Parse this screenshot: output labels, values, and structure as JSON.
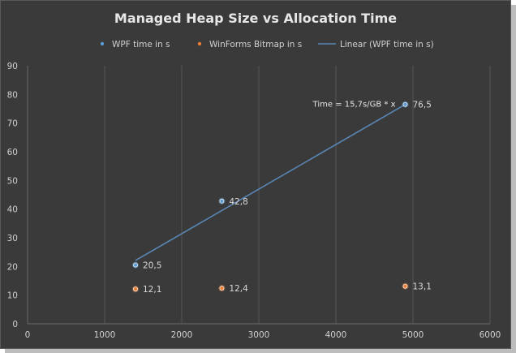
{
  "chart_data": {
    "type": "scatter",
    "title": "Managed Heap Size vs Allocation Time",
    "xlabel": "",
    "ylabel": "",
    "xlim": [
      0,
      6000
    ],
    "ylim": [
      0,
      90
    ],
    "x_ticks": [
      0,
      1000,
      2000,
      3000,
      4000,
      5000,
      6000
    ],
    "y_ticks": [
      0,
      10,
      20,
      30,
      40,
      50,
      60,
      70,
      80,
      90
    ],
    "grid": "vertical-only",
    "legend_position": "top",
    "series": [
      {
        "name": "WPF  time in s",
        "color": "#5b9bd5",
        "points": [
          {
            "x": 1400,
            "y": 20.5,
            "label": "20,5"
          },
          {
            "x": 2520,
            "y": 42.8,
            "label": "42,8"
          },
          {
            "x": 4900,
            "y": 76.5,
            "label": "76,5"
          }
        ]
      },
      {
        "name": "WinForms Bitmap in s",
        "color": "#ed7d31",
        "points": [
          {
            "x": 1400,
            "y": 12.1,
            "label": "12,1"
          },
          {
            "x": 2520,
            "y": 12.4,
            "label": "12,4"
          },
          {
            "x": 4900,
            "y": 13.1,
            "label": "13,1"
          }
        ]
      }
    ],
    "trendline": {
      "name": "Linear (WPF  time in s)",
      "color": "#5a86b5",
      "x": [
        1400,
        4900
      ],
      "y": [
        22.1,
        76.5
      ],
      "label": "Time = 15,7s/GB * x"
    }
  }
}
